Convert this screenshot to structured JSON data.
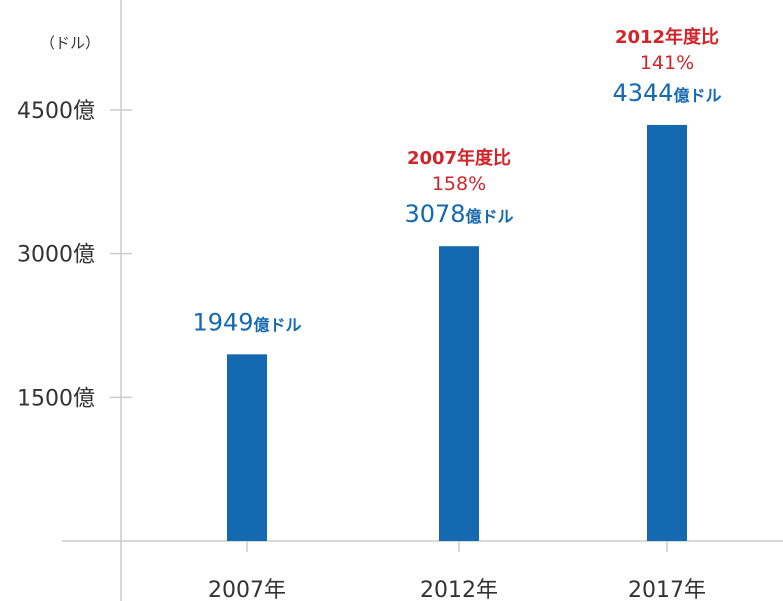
{
  "chart_data": {
    "type": "bar",
    "unit_label": "（ドル）",
    "categories": [
      "2007年",
      "2012年",
      "2017年"
    ],
    "values": [
      1949,
      3078,
      4344
    ],
    "value_number_labels": [
      "1949",
      "3078",
      "4344"
    ],
    "value_unit_label": "億ドル",
    "comparison_labels": [
      null,
      {
        "line1": "2007年度比",
        "line2": "158%"
      },
      {
        "line1": "2012年度比",
        "line2": "141%"
      }
    ],
    "yticks": [
      {
        "value": 1500,
        "label": "1500億"
      },
      {
        "value": 3000,
        "label": "3000億"
      },
      {
        "value": 4500,
        "label": "4500億"
      }
    ],
    "ylim": [
      0,
      6000
    ],
    "bar_color": "#1469b0",
    "label_color": "#1469b0",
    "comparison_color": "#d0262b",
    "axis_color": "#cccccc"
  }
}
